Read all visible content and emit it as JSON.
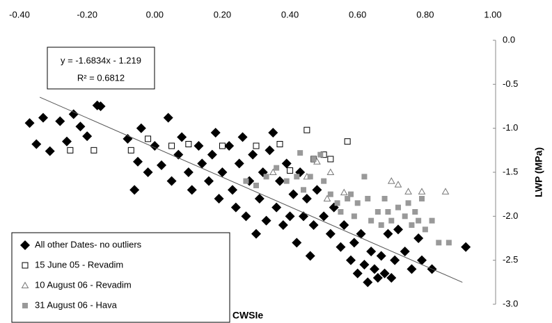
{
  "chart_data": {
    "type": "scatter",
    "x_label": "CWSIe",
    "y_label": "LWP (MPa)",
    "annotations": [
      "y = -1.6834x - 1.219",
      "R² = 0.6812"
    ],
    "trendline": {
      "slope": -1.6834,
      "intercept": -1.219,
      "x_range": [
        -0.34,
        0.91
      ]
    },
    "xlim": [
      -0.4,
      1.0
    ],
    "xticks": [
      {
        "value": -0.4,
        "label": "-0.40"
      },
      {
        "value": -0.2,
        "label": "-0.20"
      },
      {
        "value": 0,
        "label": "0.00"
      },
      {
        "value": 0.2,
        "label": "0.20"
      },
      {
        "value": 0.4,
        "label": "0.40"
      },
      {
        "value": 0.6,
        "label": "0.60"
      },
      {
        "value": 0.8,
        "label": "0.80"
      },
      {
        "value": 1.0,
        "label": "1.00"
      }
    ],
    "ylim": [
      -3.0,
      0.0
    ],
    "yticks": [
      {
        "value": 0,
        "label": "0.0"
      },
      {
        "value": -0.5,
        "label": "-0.5"
      },
      {
        "value": -1.0,
        "label": "-1.0"
      },
      {
        "value": -1.5,
        "label": "-1.5"
      },
      {
        "value": -2.0,
        "label": "-2.0"
      },
      {
        "value": -2.5,
        "label": "-2.5"
      },
      {
        "value": -3.0,
        "label": "-3.0"
      }
    ],
    "legend": "bottom-left",
    "series": [
      {
        "name": "All other Dates- no outliers",
        "color": "#000000",
        "marker": "diamond",
        "x": [
          -0.37,
          -0.35,
          -0.33,
          -0.31,
          -0.28,
          -0.26,
          -0.24,
          -0.22,
          -0.2,
          -0.17,
          -0.16,
          -0.08,
          -0.05,
          -0.04,
          -0.06,
          -0.02,
          0.0,
          0.02,
          0.04,
          0.05,
          0.07,
          0.08,
          0.1,
          0.11,
          0.13,
          0.14,
          0.16,
          0.17,
          0.18,
          0.19,
          0.2,
          0.22,
          0.23,
          0.24,
          0.25,
          0.26,
          0.27,
          0.28,
          0.29,
          0.3,
          0.31,
          0.32,
          0.33,
          0.34,
          0.35,
          0.36,
          0.37,
          0.38,
          0.39,
          0.4,
          0.41,
          0.42,
          0.43,
          0.44,
          0.45,
          0.46,
          0.47,
          0.48,
          0.5,
          0.52,
          0.53,
          0.55,
          0.56,
          0.58,
          0.59,
          0.6,
          0.61,
          0.62,
          0.63,
          0.64,
          0.65,
          0.66,
          0.67,
          0.68,
          0.69,
          0.7,
          0.71,
          0.72,
          0.74,
          0.76,
          0.78,
          0.79,
          0.82,
          0.92
        ],
        "values": [
          -0.94,
          -1.18,
          -0.88,
          -1.26,
          -0.92,
          -1.15,
          -0.84,
          -0.98,
          -1.09,
          -0.74,
          -0.75,
          -1.12,
          -1.38,
          -1.0,
          -1.7,
          -1.5,
          -1.2,
          -1.42,
          -0.88,
          -1.6,
          -1.3,
          -1.1,
          -1.5,
          -1.7,
          -1.2,
          -1.4,
          -1.6,
          -1.3,
          -1.05,
          -1.8,
          -1.5,
          -1.2,
          -1.7,
          -1.9,
          -1.4,
          -1.1,
          -2.0,
          -1.6,
          -1.3,
          -2.2,
          -1.8,
          -1.5,
          -2.05,
          -1.25,
          -1.05,
          -1.9,
          -1.6,
          -2.1,
          -1.4,
          -2.0,
          -1.75,
          -2.3,
          -1.5,
          -2.0,
          -1.8,
          -2.45,
          -2.1,
          -1.7,
          -2.0,
          -2.2,
          -1.9,
          -2.35,
          -2.1,
          -2.5,
          -2.3,
          -2.65,
          -2.2,
          -2.55,
          -2.75,
          -2.4,
          -2.6,
          -2.7,
          -2.45,
          -2.65,
          -2.2,
          -2.7,
          -2.5,
          -2.15,
          -2.4,
          -2.6,
          -2.25,
          -2.5,
          -2.6,
          -2.35
        ]
      },
      {
        "name": "15 June 05 - Revadim",
        "color": "#000000",
        "marker": "square-open",
        "x": [
          -0.25,
          -0.18,
          -0.07,
          -0.02,
          0.05,
          0.1,
          0.2,
          0.3,
          0.37,
          0.4,
          0.45,
          0.47,
          0.5,
          0.52,
          0.57
        ],
        "values": [
          -1.25,
          -1.25,
          -1.25,
          -1.12,
          -1.2,
          -1.18,
          -1.2,
          -1.2,
          -1.18,
          -1.48,
          -1.02,
          -1.35,
          -1.3,
          -1.35,
          -1.15
        ]
      },
      {
        "name": "10 August 06 - Revadim",
        "color": "#777777",
        "marker": "triangle-open",
        "x": [
          0.35,
          0.45,
          0.48,
          0.51,
          0.52,
          0.56,
          0.7,
          0.72,
          0.75,
          0.79,
          0.86
        ],
        "values": [
          -1.5,
          -1.55,
          -1.38,
          -1.8,
          -1.5,
          -1.73,
          -1.6,
          -1.64,
          -1.72,
          -1.72,
          -1.72
        ]
      },
      {
        "name": "31 August 06 - Hava",
        "color": "#999999",
        "marker": "square",
        "x": [
          0.27,
          0.3,
          0.33,
          0.36,
          0.39,
          0.42,
          0.43,
          0.44,
          0.46,
          0.47,
          0.49,
          0.5,
          0.52,
          0.54,
          0.55,
          0.57,
          0.58,
          0.59,
          0.6,
          0.62,
          0.63,
          0.64,
          0.66,
          0.67,
          0.68,
          0.69,
          0.7,
          0.72,
          0.74,
          0.75,
          0.76,
          0.77,
          0.78,
          0.79,
          0.8,
          0.82,
          0.84,
          0.87
        ],
        "values": [
          -1.6,
          -1.65,
          -1.55,
          -1.45,
          -1.6,
          -1.55,
          -1.28,
          -1.7,
          -1.55,
          -1.35,
          -1.3,
          -1.6,
          -1.75,
          -1.85,
          -1.95,
          -1.8,
          -1.75,
          -2.0,
          -1.85,
          -1.55,
          -1.8,
          -2.05,
          -1.95,
          -2.1,
          -1.8,
          -1.95,
          -2.05,
          -1.9,
          -2.0,
          -1.85,
          -2.1,
          -1.95,
          -2.05,
          -1.8,
          -2.15,
          -2.05,
          -2.3,
          -2.3
        ]
      }
    ]
  }
}
